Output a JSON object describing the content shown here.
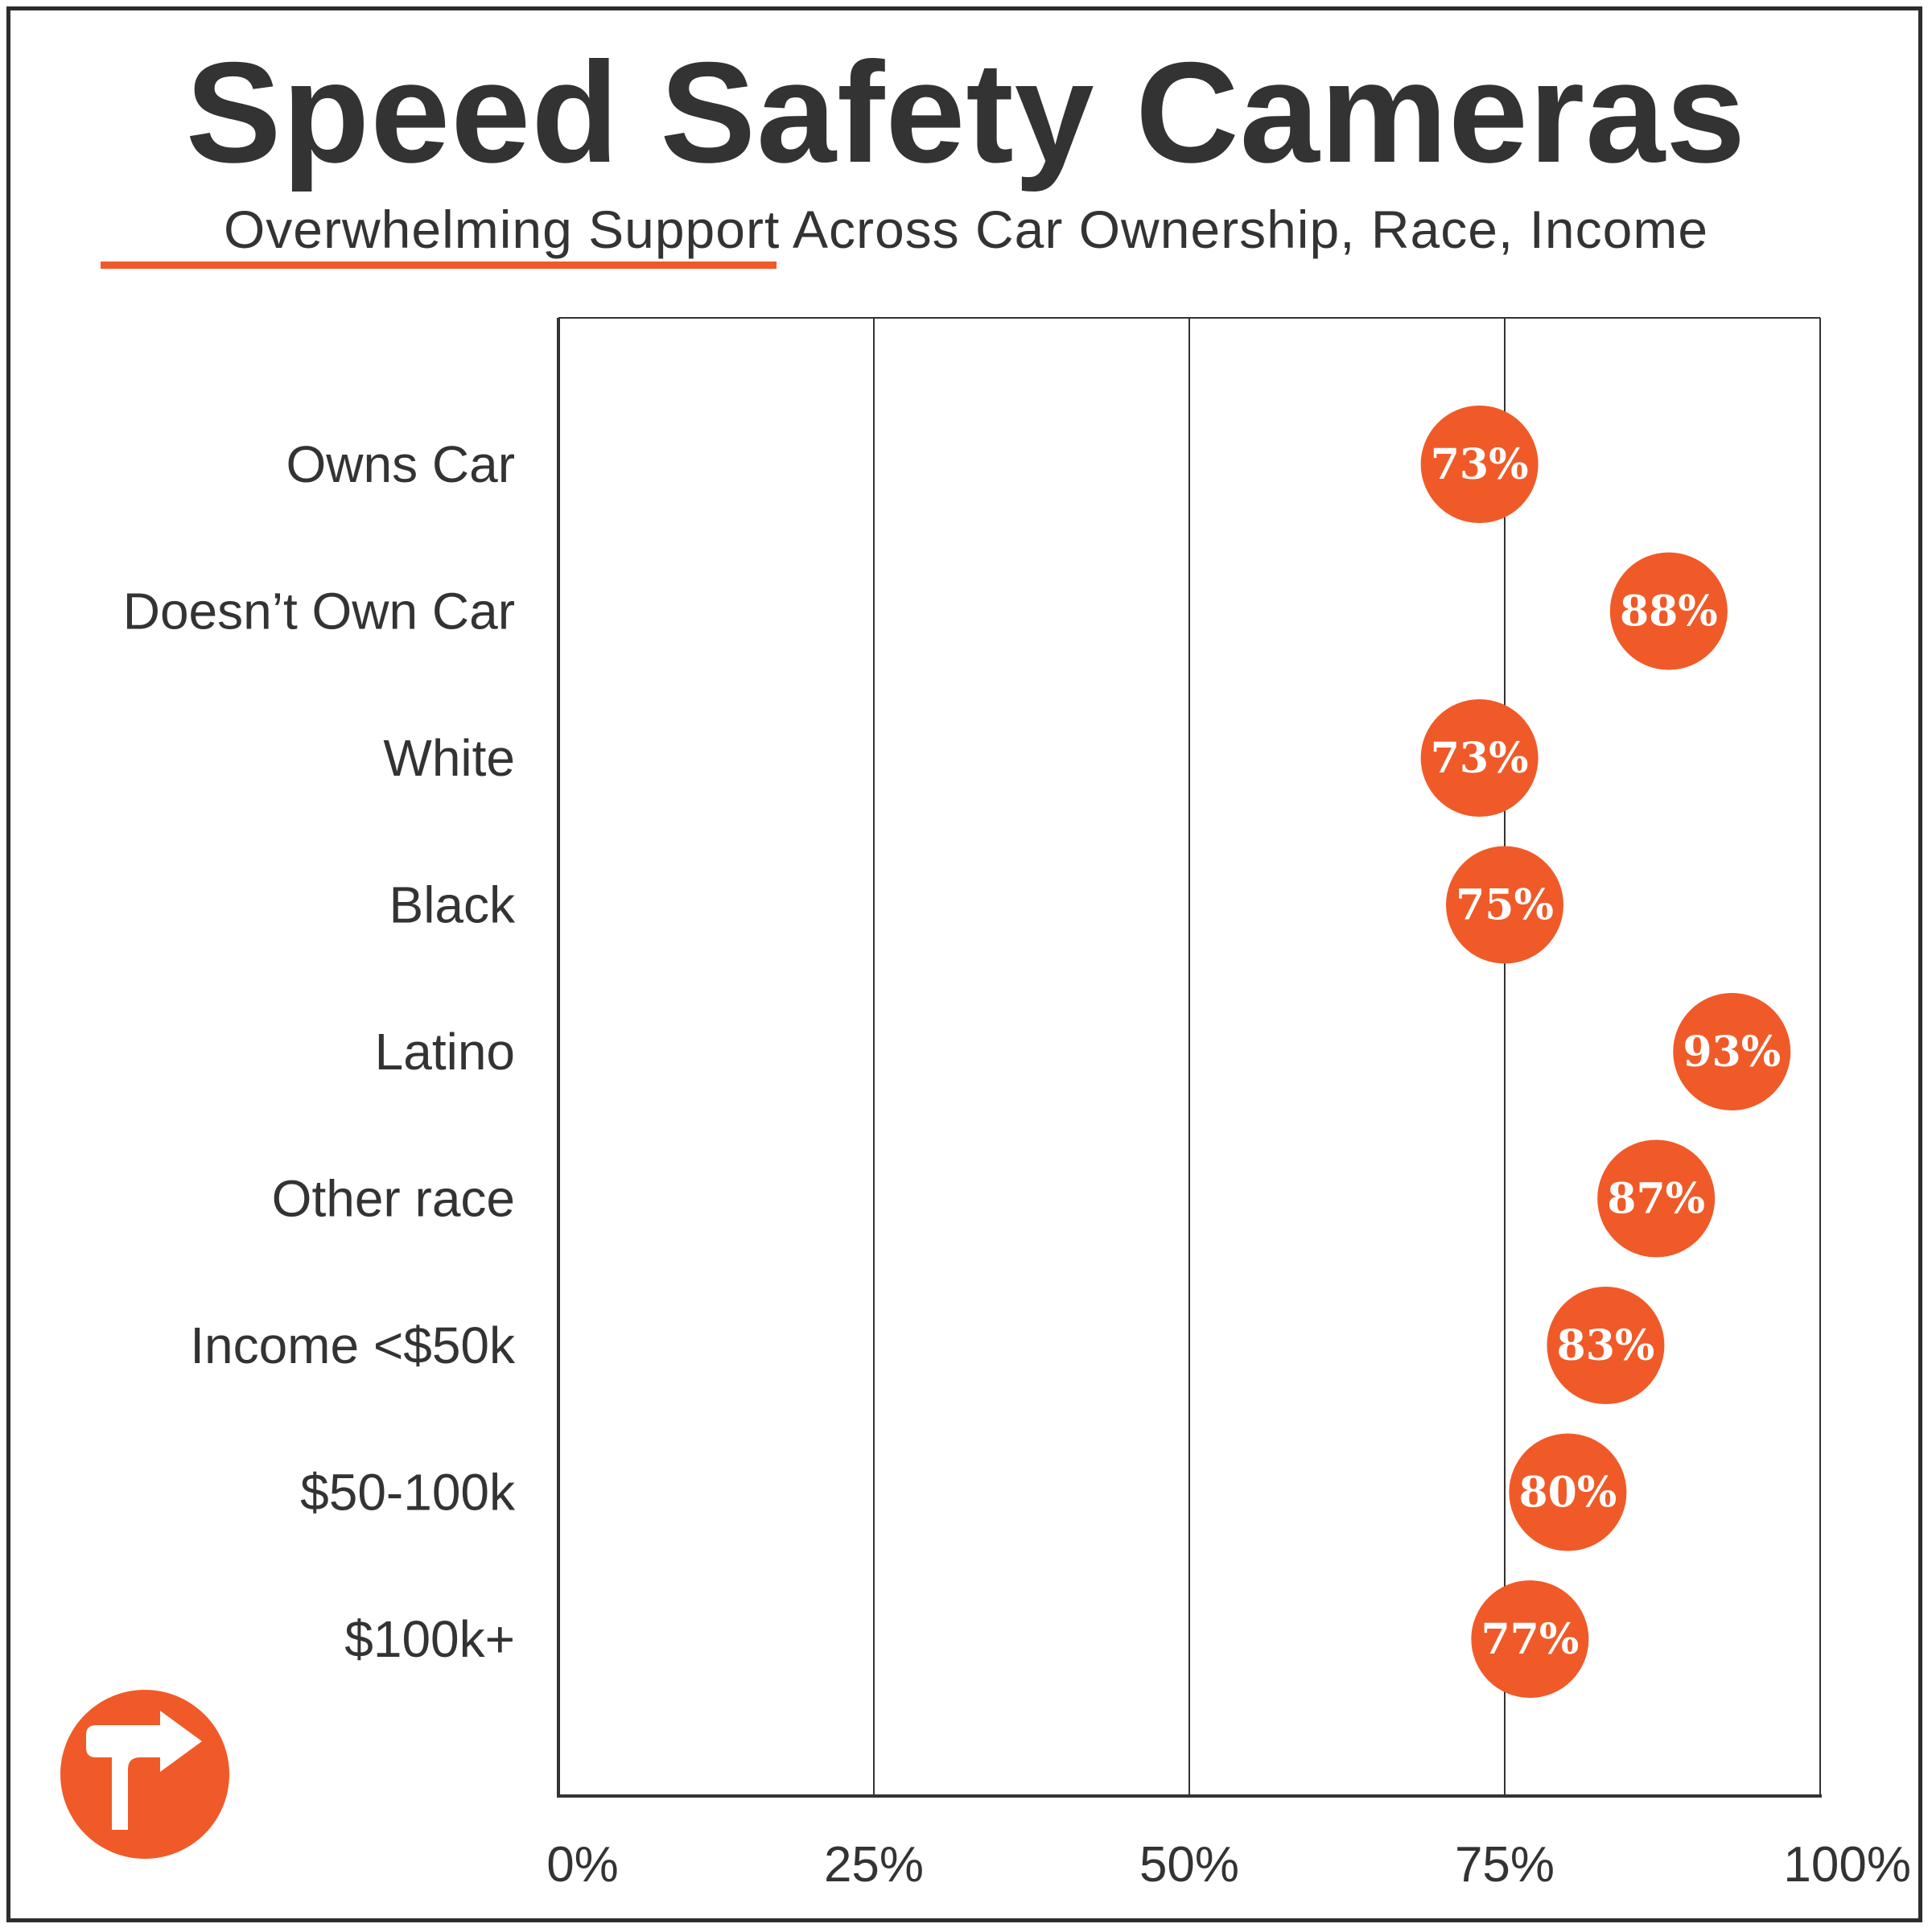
{
  "title": "Speed Safety Cameras",
  "subtitle": "Overwhelming Support Across Car Ownership, Race, Income",
  "colors": {
    "accent": "#f05a28",
    "text": "#333333",
    "grid": "#333333"
  },
  "logo": {
    "icon": "turn-right-arrow-icon"
  },
  "chart_data": {
    "type": "scatter",
    "title": "Speed Safety Cameras",
    "subtitle": "Overwhelming Support Across Car Ownership, Race, Income",
    "categories": [
      "Owns Car",
      "Doesn’t Own Car",
      "White",
      "Black",
      "Latino",
      "Other race",
      "Income <$50k",
      "$50-100k",
      "$100k+"
    ],
    "values": [
      73,
      88,
      73,
      75,
      93,
      87,
      83,
      80,
      77
    ],
    "data_labels": [
      "73%",
      "88%",
      "73%",
      "75%",
      "93%",
      "87%",
      "83%",
      "80%",
      "77%"
    ],
    "x_ticks": [
      "0%",
      "25%",
      "50%",
      "75%",
      "100%"
    ],
    "x_tick_values": [
      0,
      25,
      50,
      75,
      100
    ],
    "xlim": [
      0,
      100
    ],
    "xlabel": "",
    "ylabel": "",
    "grid": true,
    "legend": "none"
  }
}
